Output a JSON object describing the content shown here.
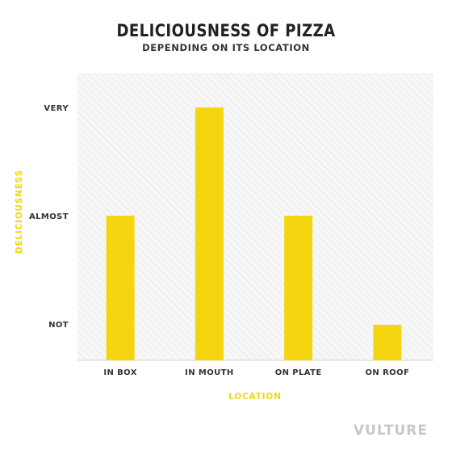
{
  "header": {
    "title": "DELICIOUSNESS OF PIZZA",
    "subtitle": "DEPENDING ON ITS LOCATION"
  },
  "chart_data": {
    "type": "bar",
    "title": "DELICIOUSNESS OF PIZZA",
    "subtitle": "DEPENDING ON ITS LOCATION",
    "xlabel": "LOCATION",
    "ylabel": "DELICIOUSNESS",
    "categories": [
      "IN BOX",
      "IN MOUTH",
      "ON PLATE",
      "ON ROOF"
    ],
    "values": [
      1.0,
      2.0,
      1.0,
      0.0
    ],
    "y_tick_values": [
      0,
      1,
      2
    ],
    "y_tick_labels": [
      "NOT",
      "ALMOST",
      "VERY"
    ],
    "ylim": [
      -0.28,
      2.0
    ],
    "grid": false,
    "background": "diagonal-hatch",
    "colors": {
      "bar": "#f5d410",
      "axis_label": "#f5d410",
      "plot_bg": "#f7f7f7",
      "hatch": "#e3e3e3"
    }
  },
  "branding": {
    "logo": "VULTURE"
  }
}
